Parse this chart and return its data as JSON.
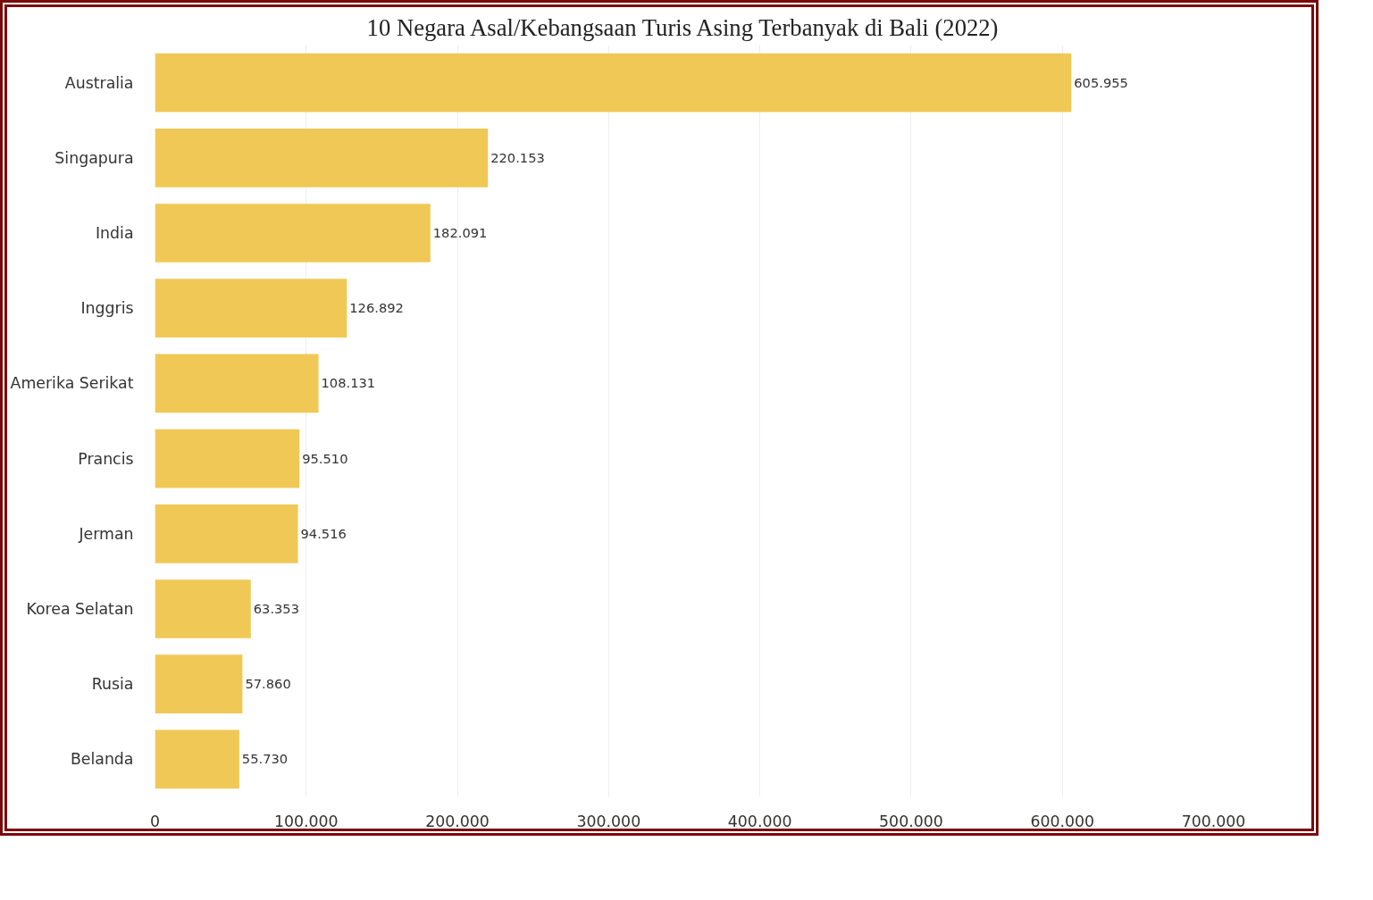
{
  "chart_data": {
    "type": "bar",
    "orientation": "horizontal",
    "title": "10 Negara Asal/Kebangsaan Turis Asing Terbanyak di Bali (2022)",
    "categories": [
      "Australia",
      "Singapura",
      "India",
      "Inggris",
      "Amerika Serikat",
      "Prancis",
      "Jerman",
      "Korea Selatan",
      "Rusia",
      "Belanda"
    ],
    "values": [
      605955,
      220153,
      182091,
      126892,
      108131,
      95510,
      94516,
      63353,
      57860,
      55730
    ],
    "value_labels": [
      "605.955",
      "220.153",
      "182.091",
      "126.892",
      "108.131",
      "95.510",
      "94.516",
      "63.353",
      "57.860",
      "55.730"
    ],
    "color": "#f0c855",
    "xlim": [
      0,
      700000
    ],
    "xticks": [
      0,
      {
        "value": 100000,
        "label": "100.000"
      },
      {
        "value": 200000,
        "label": "200.000"
      },
      {
        "value": 300000,
        "label": "300.000"
      },
      {
        "value": 400000,
        "label": "400.000"
      },
      {
        "value": 500000,
        "label": "500.000"
      },
      {
        "value": 600000,
        "label": "600.000"
      },
      {
        "value": 700000,
        "label": "700.000"
      }
    ],
    "grid": "x"
  }
}
